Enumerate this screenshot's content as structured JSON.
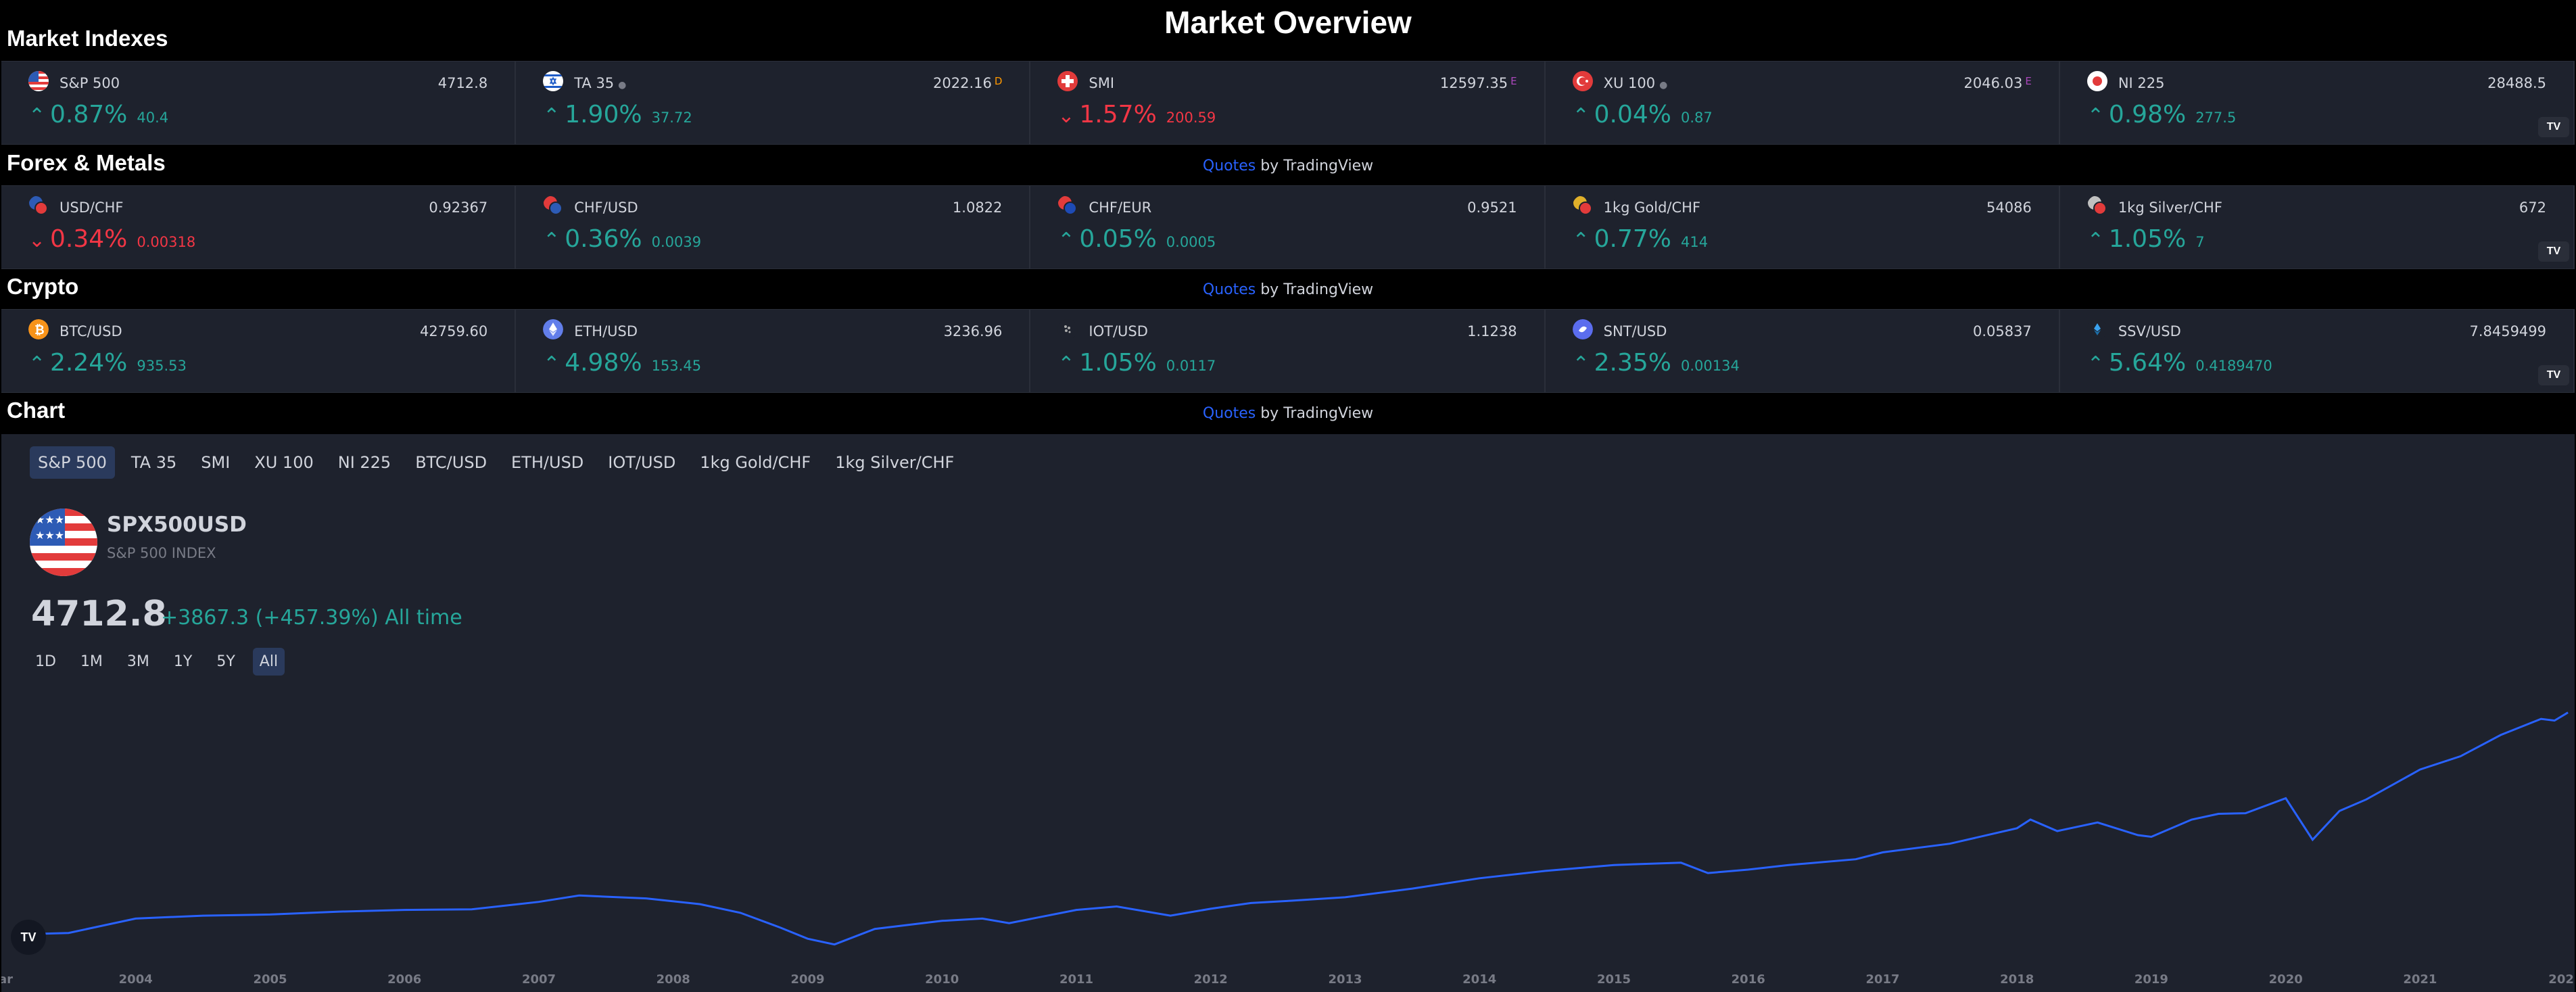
{
  "page_title": "Market Overview",
  "attribution": {
    "link": "Quotes",
    "suffix": " by TradingView"
  },
  "logo_text": "TV",
  "sections": [
    {
      "title": "Market Indexes",
      "tickers": [
        {
          "name": "S&P 500",
          "dot": false,
          "price": "4712.8",
          "sup": "",
          "sup_color": "",
          "direction": "up",
          "pct": "0.87%",
          "abs": "40.4",
          "icon": "us-flag-icon"
        },
        {
          "name": "TA 35",
          "dot": true,
          "price": "2022.16",
          "sup": "D",
          "sup_color": "#ff9800",
          "direction": "up",
          "pct": "1.90%",
          "abs": "37.72",
          "icon": "israel-flag-icon"
        },
        {
          "name": "SMI",
          "dot": false,
          "price": "12597.35",
          "sup": "E",
          "sup_color": "#ab47bc",
          "direction": "down",
          "pct": "1.57%",
          "abs": "200.59",
          "icon": "swiss-flag-icon"
        },
        {
          "name": "XU 100",
          "dot": true,
          "price": "2046.03",
          "sup": "E",
          "sup_color": "#ab47bc",
          "direction": "up",
          "pct": "0.04%",
          "abs": "0.87",
          "icon": "turkey-flag-icon"
        },
        {
          "name": "NI 225",
          "dot": false,
          "price": "28488.5",
          "sup": "",
          "sup_color": "",
          "direction": "up",
          "pct": "0.98%",
          "abs": "277.5",
          "icon": "japan-flag-icon"
        }
      ]
    },
    {
      "title": "Forex & Metals",
      "tickers": [
        {
          "name": "USD/CHF",
          "dot": false,
          "price": "0.92367",
          "sup": "",
          "sup_color": "",
          "direction": "down",
          "pct": "0.34%",
          "abs": "0.00318",
          "icon": "usd-chf-icon"
        },
        {
          "name": "CHF/USD",
          "dot": false,
          "price": "1.0822",
          "sup": "",
          "sup_color": "",
          "direction": "up",
          "pct": "0.36%",
          "abs": "0.0039",
          "icon": "chf-usd-icon"
        },
        {
          "name": "CHF/EUR",
          "dot": false,
          "price": "0.9521",
          "sup": "",
          "sup_color": "",
          "direction": "up",
          "pct": "0.05%",
          "abs": "0.0005",
          "icon": "chf-eur-icon"
        },
        {
          "name": "1kg Gold/CHF",
          "dot": false,
          "price": "54086",
          "sup": "",
          "sup_color": "",
          "direction": "up",
          "pct": "0.77%",
          "abs": "414",
          "icon": "gold-chf-icon"
        },
        {
          "name": "1kg Silver/CHF",
          "dot": false,
          "price": "672",
          "sup": "",
          "sup_color": "",
          "direction": "up",
          "pct": "1.05%",
          "abs": "7",
          "icon": "silver-chf-icon"
        }
      ]
    },
    {
      "title": "Crypto",
      "tickers": [
        {
          "name": "BTC/USD",
          "dot": false,
          "price": "42759.60",
          "sup": "",
          "sup_color": "",
          "direction": "up",
          "pct": "2.24%",
          "abs": "935.53",
          "icon": "bitcoin-icon"
        },
        {
          "name": "ETH/USD",
          "dot": false,
          "price": "3236.96",
          "sup": "",
          "sup_color": "",
          "direction": "up",
          "pct": "4.98%",
          "abs": "153.45",
          "icon": "ethereum-icon"
        },
        {
          "name": "IOT/USD",
          "dot": false,
          "price": "1.1238",
          "sup": "",
          "sup_color": "",
          "direction": "up",
          "pct": "1.05%",
          "abs": "0.0117",
          "icon": "iota-icon"
        },
        {
          "name": "SNT/USD",
          "dot": false,
          "price": "0.05837",
          "sup": "",
          "sup_color": "",
          "direction": "up",
          "pct": "2.35%",
          "abs": "0.00134",
          "icon": "status-icon"
        },
        {
          "name": "SSV/USD",
          "dot": false,
          "price": "7.8459499",
          "sup": "",
          "sup_color": "",
          "direction": "up",
          "pct": "5.64%",
          "abs": "0.4189470",
          "icon": "ssv-icon"
        }
      ]
    }
  ],
  "chart_section": {
    "title": "Chart",
    "tabs": [
      "S&P 500",
      "TA 35",
      "SMI",
      "XU 100",
      "NI 225",
      "BTC/USD",
      "ETH/USD",
      "IOT/USD",
      "1kg Gold/CHF",
      "1kg Silver/CHF"
    ],
    "active_tab": "S&P 500",
    "symbol": "SPX500USD",
    "description": "S&P 500 INDEX",
    "price": "4712.8",
    "change": "+3867.3 (+457.39%) All time",
    "ranges": [
      "1D",
      "1M",
      "3M",
      "1Y",
      "5Y",
      "All"
    ],
    "active_range": "All"
  },
  "colors": {
    "up": "#26a69a",
    "down": "#f23645",
    "line": "#2962ff",
    "accent": "#2962ff"
  },
  "chart_data": {
    "type": "area",
    "x_ticks": [
      "ar",
      "2004",
      "2005",
      "2006",
      "2007",
      "2008",
      "2009",
      "2010",
      "2011",
      "2012",
      "2013",
      "2014",
      "2015",
      "2016",
      "2017",
      "2018",
      "2019",
      "2020",
      "2021",
      "202"
    ],
    "x": [
      2003.2,
      2003.5,
      2004.0,
      2004.5,
      2005.0,
      2005.5,
      2006.0,
      2006.5,
      2007.0,
      2007.3,
      2007.8,
      2008.2,
      2008.5,
      2008.8,
      2009.0,
      2009.2,
      2009.5,
      2010.0,
      2010.3,
      2010.5,
      2011.0,
      2011.3,
      2011.7,
      2012.0,
      2012.3,
      2012.6,
      2013.0,
      2013.5,
      2014.0,
      2014.5,
      2015.0,
      2015.5,
      2015.7,
      2016.0,
      2016.3,
      2016.8,
      2017.0,
      2017.5,
      2018.0,
      2018.1,
      2018.3,
      2018.6,
      2018.9,
      2019.0,
      2019.3,
      2019.5,
      2019.7,
      2020.0,
      2020.2,
      2020.4,
      2020.6,
      2021.0,
      2021.3,
      2021.6,
      2021.9,
      2022.0,
      2022.1
    ],
    "values": [
      860,
      880,
      1130,
      1180,
      1200,
      1250,
      1280,
      1290,
      1420,
      1530,
      1480,
      1380,
      1230,
      970,
      780,
      680,
      950,
      1090,
      1130,
      1050,
      1280,
      1340,
      1180,
      1300,
      1400,
      1440,
      1500,
      1650,
      1830,
      1960,
      2060,
      2100,
      1920,
      1980,
      2060,
      2160,
      2280,
      2430,
      2700,
      2850,
      2650,
      2800,
      2580,
      2550,
      2850,
      2950,
      2960,
      3220,
      2500,
      3000,
      3200,
      3720,
      3950,
      4320,
      4600,
      4570,
      4710
    ],
    "ylim": [
      500,
      5200
    ],
    "xlim": [
      2003.0,
      2022.15
    ]
  }
}
